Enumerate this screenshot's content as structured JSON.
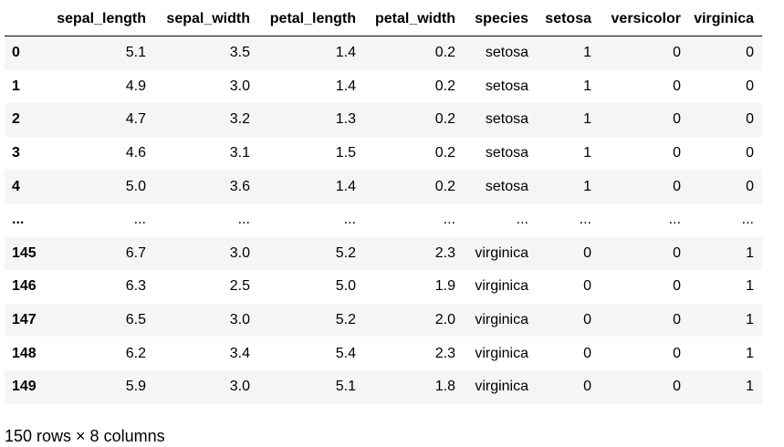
{
  "table": {
    "columns": [
      "",
      "sepal_length",
      "sepal_width",
      "petal_length",
      "petal_width",
      "species",
      "setosa",
      "versicolor",
      "virginica"
    ],
    "rows": [
      [
        "0",
        "5.1",
        "3.5",
        "1.4",
        "0.2",
        "setosa",
        "1",
        "0",
        "0"
      ],
      [
        "1",
        "4.9",
        "3.0",
        "1.4",
        "0.2",
        "setosa",
        "1",
        "0",
        "0"
      ],
      [
        "2",
        "4.7",
        "3.2",
        "1.3",
        "0.2",
        "setosa",
        "1",
        "0",
        "0"
      ],
      [
        "3",
        "4.6",
        "3.1",
        "1.5",
        "0.2",
        "setosa",
        "1",
        "0",
        "0"
      ],
      [
        "4",
        "5.0",
        "3.6",
        "1.4",
        "0.2",
        "setosa",
        "1",
        "0",
        "0"
      ],
      [
        "...",
        "...",
        "...",
        "...",
        "...",
        "...",
        "...",
        "...",
        "..."
      ],
      [
        "145",
        "6.7",
        "3.0",
        "5.2",
        "2.3",
        "virginica",
        "0",
        "0",
        "1"
      ],
      [
        "146",
        "6.3",
        "2.5",
        "5.0",
        "1.9",
        "virginica",
        "0",
        "0",
        "1"
      ],
      [
        "147",
        "6.5",
        "3.0",
        "5.2",
        "2.0",
        "virginica",
        "0",
        "0",
        "1"
      ],
      [
        "148",
        "6.2",
        "3.4",
        "5.4",
        "2.3",
        "virginica",
        "0",
        "0",
        "1"
      ],
      [
        "149",
        "5.9",
        "3.0",
        "5.1",
        "1.8",
        "virginica",
        "0",
        "0",
        "1"
      ]
    ]
  },
  "footer": {
    "shape_text": "150 rows × 8 columns"
  }
}
